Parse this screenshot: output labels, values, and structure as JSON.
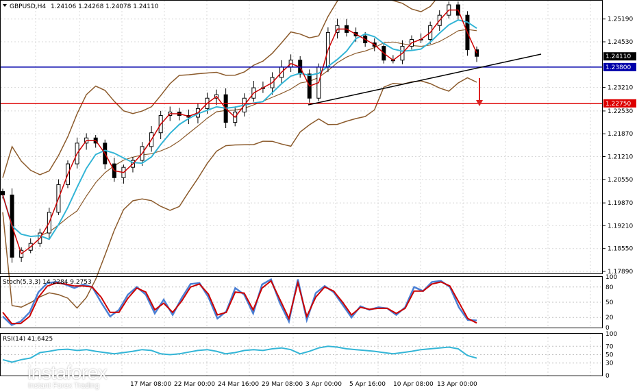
{
  "header": {
    "symbol": "GBPUSD,H4",
    "ohlc": "1.24106 1.24268 1.24078 1.24110",
    "stoch_label": "Stoch(5,3,3) 14.2284 9.2753",
    "rsi_label": "RSI(14) 41.6425"
  },
  "brand": {
    "name": "instaforex",
    "tagline": "Instant Forex Trading"
  },
  "colors": {
    "background": "#ffffff",
    "candle": "#000000",
    "bollinger": "#8b5a2b",
    "ma_fast": "#cc0000",
    "ma_slow": "#33b5d6",
    "support_line": "#0000aa",
    "target_line": "#dd0000",
    "trendline": "#000000",
    "stoch_main": "#4a7fd4",
    "stoch_signal": "#cc0000",
    "rsi": "#33b5d6"
  },
  "chart_data": {
    "type": "candlestick",
    "symbol": "GBPUSD",
    "timeframe": "H4",
    "ylim": [
      1.1789,
      1.257
    ],
    "y_ticks": [
      "1.25190",
      "1.24530",
      "1.23210",
      "1.22530",
      "1.21870",
      "1.21210",
      "1.20550",
      "1.19870",
      "1.19210",
      "1.18550",
      "1.17890"
    ],
    "x_ticks": [
      "17 Mar 08:00",
      "22 Mar 00:00",
      "24 Mar 16:00",
      "29 Mar 08:00",
      "3 Apr 00:00",
      "5 Apr 16:00",
      "10 Apr 08:00",
      "13 Apr 00:00"
    ],
    "price_labels": [
      {
        "label": "1.24110",
        "value": 1.2411,
        "style": "current"
      },
      {
        "label": "1.23800",
        "value": 1.238,
        "style": "support"
      },
      {
        "label": "1.22750",
        "value": 1.2275,
        "style": "target"
      }
    ],
    "close_path": [
      1.201,
      1.183,
      1.185,
      1.187,
      1.19,
      1.196,
      1.204,
      1.21,
      1.216,
      1.2175,
      1.216,
      1.21,
      1.206,
      1.209,
      1.211,
      1.215,
      1.219,
      1.224,
      1.225,
      1.224,
      1.2235,
      1.226,
      1.229,
      1.23,
      1.222,
      1.225,
      1.229,
      1.232,
      1.232,
      1.235,
      1.238,
      1.24,
      1.236,
      1.229,
      1.238,
      1.248,
      1.25,
      1.248,
      1.247,
      1.245,
      1.244,
      1.24,
      1.24,
      1.244,
      1.246,
      1.246,
      1.25,
      1.253,
      1.256,
      1.253,
      1.243,
      1.2411
    ],
    "annotations": [
      "ascending trendline",
      "arrow pointing down toward 1.22750"
    ],
    "stochastic": {
      "params": "5,3,3",
      "main": 14.2284,
      "signal": 9.2753,
      "levels": [
        80,
        50,
        20
      ],
      "scale": [
        "100",
        "80",
        "50",
        "20",
        "0"
      ],
      "main_path": [
        22,
        5,
        12,
        30,
        70,
        88,
        90,
        85,
        78,
        85,
        80,
        50,
        22,
        35,
        65,
        80,
        65,
        28,
        55,
        25,
        58,
        86,
        88,
        60,
        18,
        32,
        78,
        65,
        28,
        85,
        95,
        48,
        12,
        95,
        15,
        68,
        82,
        70,
        45,
        20,
        42,
        35,
        40,
        38,
        25,
        40,
        80,
        72,
        90,
        92,
        80,
        40,
        15,
        14
      ],
      "signal_path": [
        30,
        8,
        8,
        22,
        60,
        82,
        88,
        86,
        82,
        82,
        80,
        60,
        30,
        30,
        58,
        78,
        70,
        35,
        48,
        30,
        52,
        80,
        86,
        66,
        25,
        30,
        70,
        68,
        35,
        78,
        92,
        55,
        18,
        88,
        22,
        60,
        80,
        72,
        50,
        25,
        40,
        36,
        38,
        38,
        28,
        38,
        72,
        72,
        86,
        90,
        82,
        50,
        18,
        9
      ]
    },
    "rsi": {
      "period": 14,
      "value": 41.6425,
      "levels": [
        70,
        50,
        30
      ],
      "scale": [
        "100",
        "70",
        "50",
        "30",
        "0"
      ],
      "path": [
        38,
        32,
        38,
        42,
        55,
        58,
        62,
        63,
        60,
        62,
        58,
        55,
        52,
        55,
        58,
        62,
        60,
        52,
        50,
        52,
        56,
        60,
        62,
        58,
        52,
        55,
        60,
        62,
        60,
        64,
        66,
        62,
        52,
        58,
        66,
        70,
        68,
        64,
        62,
        60,
        58,
        55,
        52,
        55,
        58,
        62,
        64,
        66,
        68,
        64,
        48,
        41.6
      ]
    }
  }
}
